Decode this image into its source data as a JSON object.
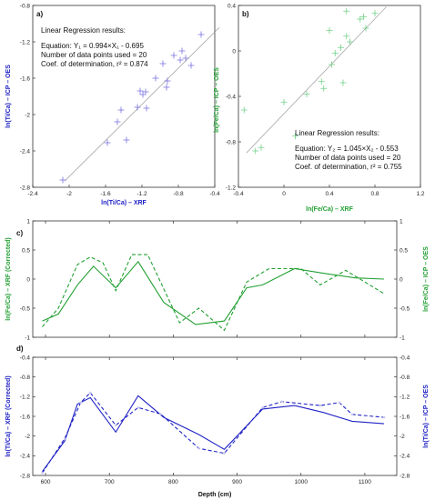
{
  "colors": {
    "blue": "#1f22c4",
    "green": "#22a033",
    "blue_marker": "#7a72e0",
    "green_marker": "#72cf88",
    "fit": "#9a9a9a"
  },
  "chart_data": [
    {
      "panel": "a)",
      "type": "scatter",
      "xlabel": "ln(Ti/Ca) – XRF",
      "ylabel": "ln(Ti/Ca) – ICP – OES",
      "xlim": [
        -2.4,
        -0.4
      ],
      "ylim": [
        -2.8,
        -0.8
      ],
      "x_ticks": [
        "-2.4",
        "-2",
        "-1.6",
        "-1.2",
        "-0.8",
        "-0.4"
      ],
      "y_ticks": [
        "-2.8",
        "-2.4",
        "-2",
        "-1.6",
        "-1.2",
        "-0.8"
      ],
      "points": [
        [
          -2.07,
          -2.72
        ],
        [
          -1.58,
          -2.31
        ],
        [
          -1.47,
          -2.08
        ],
        [
          -1.43,
          -1.95
        ],
        [
          -1.37,
          -2.28
        ],
        [
          -1.25,
          -1.92
        ],
        [
          -1.22,
          -1.74
        ],
        [
          -1.19,
          -1.78
        ],
        [
          -1.16,
          -1.75
        ],
        [
          -1.15,
          -1.93
        ],
        [
          -1.05,
          -1.6
        ],
        [
          -0.97,
          -1.44
        ],
        [
          -0.93,
          -1.7
        ],
        [
          -0.92,
          -1.63
        ],
        [
          -0.85,
          -1.35
        ],
        [
          -0.78,
          -1.4
        ],
        [
          -0.76,
          -1.3
        ],
        [
          -0.72,
          -1.38
        ],
        [
          -0.66,
          -1.46
        ],
        [
          -0.55,
          -1.12
        ]
      ],
      "fit": {
        "slope": 0.994,
        "intercept": -0.695,
        "x_range": [
          -2.05,
          -0.35
        ]
      },
      "annotation": {
        "title": "Linear Regression results:",
        "equation": "Equation: Y₁ = 0.994×X₁ - 0.695",
        "n_points": "Number of data points used = 20",
        "r2": "Coef. of determination, r² = 0.874"
      }
    },
    {
      "panel": "b)",
      "type": "scatter",
      "xlabel": "ln(Fe/Ca) – XRF",
      "ylabel": "ln(Fe/Ca) – ICP – OES",
      "xlim": [
        -0.4,
        1.2
      ],
      "ylim": [
        -1.2,
        0.4
      ],
      "x_ticks": [
        "-0.4",
        "0",
        "0.4",
        "0.8",
        "1.2"
      ],
      "y_ticks": [
        "-1.2",
        "-0.8",
        "-0.4",
        "0",
        "0.4"
      ],
      "points": [
        [
          -0.35,
          -0.52
        ],
        [
          -0.25,
          -0.88
        ],
        [
          -0.2,
          -0.85
        ],
        [
          0.0,
          -0.45
        ],
        [
          0.1,
          -0.75
        ],
        [
          0.2,
          -0.38
        ],
        [
          0.33,
          -0.27
        ],
        [
          0.35,
          -0.33
        ],
        [
          0.4,
          0.18
        ],
        [
          0.42,
          -0.12
        ],
        [
          0.45,
          -0.02
        ],
        [
          0.5,
          0.03
        ],
        [
          0.52,
          -0.28
        ],
        [
          0.55,
          0.13
        ],
        [
          0.55,
          0.35
        ],
        [
          0.58,
          0.08
        ],
        [
          0.67,
          0.28
        ],
        [
          0.7,
          0.3
        ],
        [
          0.72,
          0.2
        ],
        [
          0.8,
          0.33
        ]
      ],
      "fit": {
        "slope": 1.045,
        "intercept": -0.553,
        "x_range": [
          -0.33,
          0.9
        ]
      },
      "annotation": {
        "title": "Linear Regression results:",
        "equation": "Equation: Y₂ = 1.045×X₂ - 0.553",
        "n_points": "Number of data points used = 20",
        "r2": "Coef. of determination, r² = 0.755"
      }
    },
    {
      "panel": "c)",
      "type": "line",
      "ylabel_left": "ln(Fe/Ca) – XRF (Corrected)",
      "ylabel_right": "ln(Fe/Ca) – ICP – OES",
      "xlim": [
        580,
        1150
      ],
      "ylim": [
        -1,
        1
      ],
      "y_ticks": [
        "-1",
        "-0.5",
        "0",
        "0.5",
        "1"
      ],
      "series": [
        {
          "style": "solid",
          "x": [
            595,
            620,
            650,
            675,
            710,
            745,
            785,
            835,
            880,
            915,
            940,
            990,
            1035,
            1085,
            1130
          ],
          "y": [
            -0.72,
            -0.6,
            -0.1,
            0.22,
            -0.15,
            0.3,
            -0.4,
            -0.78,
            -0.72,
            -0.15,
            -0.1,
            0.18,
            0.1,
            0.02,
            0.0
          ]
        },
        {
          "style": "dashed",
          "x": [
            595,
            620,
            650,
            670,
            690,
            710,
            735,
            760,
            810,
            840,
            880,
            915,
            950,
            1000,
            1030,
            1070,
            1130
          ],
          "y": [
            -0.82,
            -0.5,
            0.25,
            0.38,
            0.28,
            -0.2,
            0.42,
            0.42,
            -0.75,
            -0.5,
            -0.88,
            -0.05,
            0.18,
            0.18,
            -0.1,
            0.15,
            -0.25
          ]
        }
      ]
    },
    {
      "panel": "d)",
      "type": "line",
      "xlabel": "Depth (cm)",
      "ylabel_left": "ln(Ti/Ca) – XRF (Corrected)",
      "ylabel_right": "ln(Ti/Ca) – ICP – OES",
      "xlim": [
        580,
        1150
      ],
      "ylim": [
        -2.8,
        -0.4
      ],
      "x_ticks": [
        "600",
        "700",
        "800",
        "900",
        "1000",
        "1100"
      ],
      "y_ticks": [
        "-2.8",
        "-2.4",
        "-2",
        "-1.6",
        "-1.2",
        "-0.8",
        "-0.4"
      ],
      "series": [
        {
          "style": "solid",
          "x": [
            595,
            630,
            650,
            670,
            710,
            745,
            785,
            840,
            880,
            940,
            990,
            1035,
            1080,
            1130
          ],
          "y": [
            -2.72,
            -2.1,
            -1.35,
            -1.22,
            -1.92,
            -1.18,
            -1.62,
            -1.97,
            -2.27,
            -1.45,
            -1.38,
            -1.52,
            -1.7,
            -1.75
          ]
        },
        {
          "style": "dashed",
          "x": [
            595,
            630,
            655,
            670,
            710,
            745,
            780,
            840,
            880,
            940,
            970,
            1030,
            1060,
            1080,
            1130
          ],
          "y": [
            -2.75,
            -2.05,
            -1.32,
            -1.12,
            -1.78,
            -1.42,
            -1.55,
            -2.25,
            -2.35,
            -1.42,
            -1.3,
            -1.38,
            -1.32,
            -1.56,
            -1.62
          ]
        }
      ]
    }
  ]
}
